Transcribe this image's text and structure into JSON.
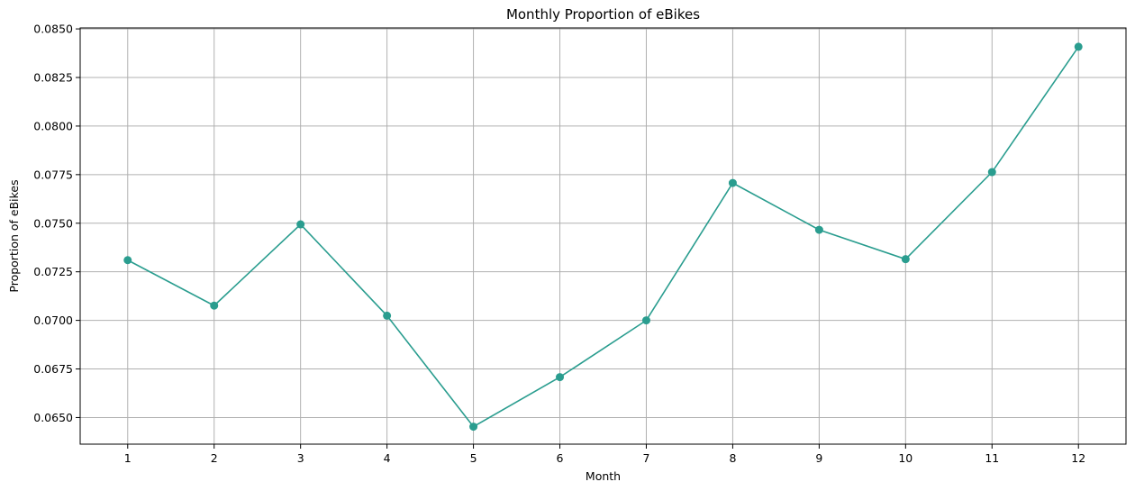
{
  "chart_data": {
    "type": "line",
    "title": "Monthly Proportion of eBikes",
    "xlabel": "Month",
    "ylabel": "Proportion of eBikes",
    "x": [
      1,
      2,
      3,
      4,
      5,
      6,
      7,
      8,
      9,
      10,
      11,
      12
    ],
    "x_tick_labels": [
      "1",
      "2",
      "3",
      "4",
      "5",
      "6",
      "7",
      "8",
      "9",
      "10",
      "11",
      "12"
    ],
    "xlim": [
      0.45,
      12.55
    ],
    "ylim": [
      0.06363,
      0.08505
    ],
    "y_ticks": [
      0.065,
      0.0675,
      0.07,
      0.0725,
      0.075,
      0.0775,
      0.08,
      0.0825,
      0.085
    ],
    "y_tick_labels": [
      "0.0650",
      "0.0675",
      "0.0700",
      "0.0725",
      "0.0750",
      "0.0775",
      "0.0800",
      "0.0825",
      "0.0850"
    ],
    "series": [
      {
        "values": [
          0.0731,
          0.07076,
          0.07494,
          0.07024,
          0.06453,
          0.06708,
          0.07,
          0.07707,
          0.07466,
          0.07315,
          0.07763,
          0.08408
        ],
        "color": "#2a9d8f",
        "marker": "circle"
      }
    ],
    "grid": true,
    "grid_color": "#b0b0b0",
    "legend": false
  }
}
